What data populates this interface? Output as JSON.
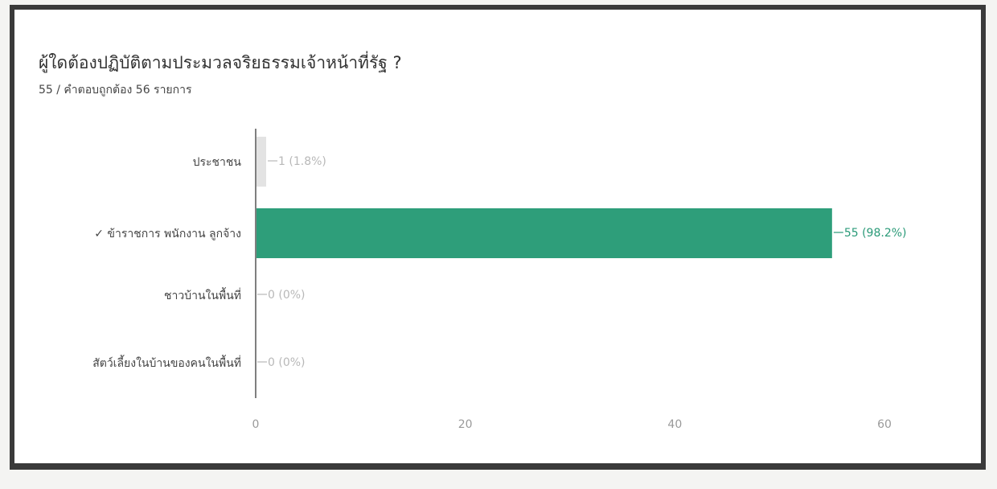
{
  "question": {
    "title": "ผู้ใดต้องปฏิบัติตามประมวลจริยธรรมเจ้าหน้าที่รัฐ ?",
    "subtitle": "55 / คำตอบถูกต้อง 56 รายการ"
  },
  "colors": {
    "correct_bar": "#2e9e7a",
    "correct_label": "#2a9a78",
    "other_bar": "#e3e3e3",
    "muted_label": "#b8b8b8",
    "axis": "#555555"
  },
  "chart_data": {
    "type": "bar",
    "orientation": "horizontal",
    "categories": [
      "ประชาชน",
      "✓ ข้าราชการ พนักงาน ลูกจ้าง",
      "ชาวบ้านในพื้นที่",
      "สัตว์เลี้ยงในบ้านของคนในพื้นที่"
    ],
    "values": [
      1,
      55,
      0,
      0
    ],
    "value_labels": [
      "1 (1.8%)",
      "55 (98.2%)",
      "0 (0%)",
      "0 (0%)"
    ],
    "correct_index": 1,
    "xlim": [
      0,
      60
    ],
    "xticks": [
      0,
      20,
      40,
      60
    ],
    "grid": false,
    "legend": "none"
  }
}
